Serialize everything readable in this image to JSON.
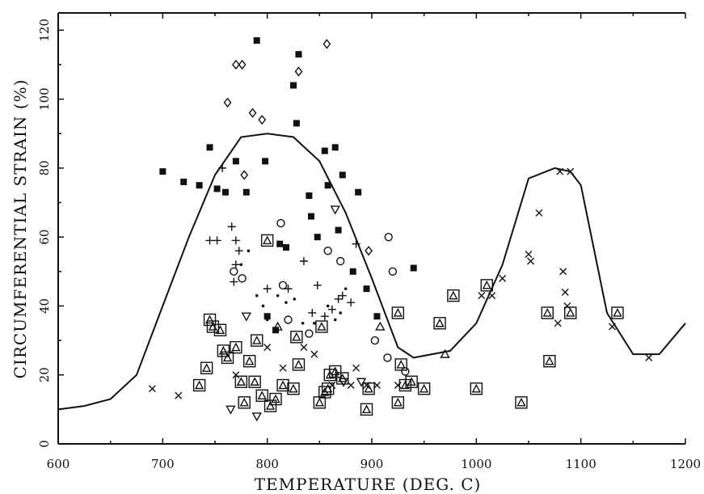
{
  "chart_data": {
    "type": "scatter",
    "xlabel": "TEMPERATURE (DEG. C)",
    "ylabel": "CIRCUMFERENTIAL STRAIN (%)",
    "xlim": [
      600,
      1200
    ],
    "ylim": [
      0,
      125
    ],
    "x_ticks": [
      600,
      700,
      800,
      900,
      1000,
      1100,
      1200
    ],
    "y_ticks": [
      0,
      20,
      40,
      60,
      80,
      100,
      120
    ],
    "grid": false,
    "legend": "none",
    "envelope": {
      "type": "line",
      "points": [
        [
          600,
          10
        ],
        [
          625,
          11
        ],
        [
          650,
          13
        ],
        [
          675,
          20
        ],
        [
          700,
          40
        ],
        [
          725,
          60
        ],
        [
          750,
          78
        ],
        [
          775,
          89
        ],
        [
          800,
          90
        ],
        [
          825,
          89
        ],
        [
          850,
          82
        ],
        [
          875,
          67
        ],
        [
          900,
          48
        ],
        [
          925,
          28
        ],
        [
          940,
          25
        ],
        [
          975,
          27
        ],
        [
          1000,
          35
        ],
        [
          1025,
          52
        ],
        [
          1050,
          77
        ],
        [
          1075,
          80
        ],
        [
          1090,
          79
        ],
        [
          1100,
          75
        ],
        [
          1125,
          38
        ],
        [
          1150,
          26
        ],
        [
          1175,
          26
        ],
        [
          1200,
          35
        ]
      ]
    },
    "series": [
      {
        "marker": "filled-square",
        "points": [
          [
            700,
            79
          ],
          [
            720,
            76
          ],
          [
            735,
            75
          ],
          [
            745,
            86
          ],
          [
            752,
            74
          ],
          [
            760,
            73
          ],
          [
            770,
            82
          ],
          [
            780,
            73
          ],
          [
            790,
            117
          ],
          [
            798,
            82
          ],
          [
            800,
            37
          ],
          [
            808,
            33
          ],
          [
            812,
            58
          ],
          [
            818,
            57
          ],
          [
            825,
            104
          ],
          [
            830,
            113
          ],
          [
            828,
            93
          ],
          [
            840,
            72
          ],
          [
            842,
            66
          ],
          [
            848,
            60
          ],
          [
            855,
            85
          ],
          [
            858,
            75
          ],
          [
            865,
            86
          ],
          [
            868,
            62
          ],
          [
            872,
            78
          ],
          [
            882,
            50
          ],
          [
            887,
            73
          ],
          [
            895,
            45
          ],
          [
            905,
            37
          ],
          [
            940,
            51
          ]
        ]
      },
      {
        "marker": "open-diamond",
        "points": [
          [
            762,
            99
          ],
          [
            770,
            110
          ],
          [
            776,
            110
          ],
          [
            778,
            78
          ],
          [
            786,
            96
          ],
          [
            795,
            94
          ],
          [
            830,
            108
          ],
          [
            857,
            116
          ],
          [
            897,
            56
          ]
        ]
      },
      {
        "marker": "plus",
        "points": [
          [
            745,
            59
          ],
          [
            752,
            59
          ],
          [
            757,
            80
          ],
          [
            766,
            63
          ],
          [
            770,
            59
          ],
          [
            773,
            56
          ],
          [
            770,
            52
          ],
          [
            768,
            47
          ],
          [
            800,
            45
          ],
          [
            820,
            45
          ],
          [
            835,
            53
          ],
          [
            843,
            38
          ],
          [
            848,
            46
          ],
          [
            855,
            37
          ],
          [
            862,
            39
          ],
          [
            868,
            42
          ],
          [
            872,
            43
          ],
          [
            880,
            41
          ],
          [
            885,
            58
          ]
        ]
      },
      {
        "marker": "open-circle",
        "points": [
          [
            768,
            50
          ],
          [
            776,
            48
          ],
          [
            813,
            64
          ],
          [
            815,
            46
          ],
          [
            820,
            36
          ],
          [
            840,
            32
          ],
          [
            858,
            56
          ],
          [
            870,
            53
          ],
          [
            903,
            30
          ],
          [
            915,
            25
          ],
          [
            916,
            60
          ],
          [
            920,
            50
          ],
          [
            932,
            21
          ]
        ]
      },
      {
        "marker": "dot",
        "points": [
          [
            775,
            52
          ],
          [
            782,
            56
          ],
          [
            790,
            43
          ],
          [
            796,
            40
          ],
          [
            800,
            36
          ],
          [
            810,
            43
          ],
          [
            818,
            41
          ],
          [
            826,
            42
          ],
          [
            834,
            35
          ],
          [
            845,
            35
          ],
          [
            858,
            40
          ],
          [
            865,
            36
          ],
          [
            870,
            38
          ],
          [
            875,
            45
          ]
        ]
      },
      {
        "marker": "boxed-triangle",
        "points": [
          [
            735,
            17
          ],
          [
            742,
            22
          ],
          [
            745,
            36
          ],
          [
            748,
            34
          ],
          [
            755,
            33
          ],
          [
            758,
            27
          ],
          [
            762,
            25
          ],
          [
            770,
            28
          ],
          [
            775,
            18
          ],
          [
            778,
            12
          ],
          [
            783,
            24
          ],
          [
            788,
            18
          ],
          [
            790,
            30
          ],
          [
            795,
            14
          ],
          [
            800,
            59
          ],
          [
            803,
            11
          ],
          [
            808,
            13
          ],
          [
            815,
            17
          ],
          [
            825,
            16
          ],
          [
            828,
            31
          ],
          [
            830,
            23
          ],
          [
            850,
            12
          ],
          [
            852,
            34
          ],
          [
            855,
            15
          ],
          [
            858,
            16
          ],
          [
            860,
            20
          ],
          [
            865,
            21
          ],
          [
            872,
            19
          ],
          [
            895,
            10
          ],
          [
            897,
            16
          ],
          [
            925,
            12
          ],
          [
            925,
            38
          ],
          [
            928,
            23
          ],
          [
            932,
            17
          ],
          [
            938,
            18
          ],
          [
            950,
            16
          ],
          [
            965,
            35
          ],
          [
            978,
            43
          ],
          [
            1000,
            16
          ],
          [
            1010,
            46
          ],
          [
            1043,
            12
          ],
          [
            1068,
            38
          ],
          [
            1070,
            24
          ],
          [
            1090,
            38
          ],
          [
            1135,
            38
          ]
        ]
      },
      {
        "marker": "open-triangle-down",
        "points": [
          [
            765,
            10
          ],
          [
            780,
            37
          ],
          [
            790,
            8
          ],
          [
            865,
            68
          ],
          [
            873,
            18
          ],
          [
            890,
            18
          ]
        ]
      },
      {
        "marker": "open-triangle-up",
        "points": [
          [
            810,
            34
          ],
          [
            908,
            34
          ],
          [
            970,
            26
          ]
        ]
      },
      {
        "marker": "cross",
        "points": [
          [
            690,
            16
          ],
          [
            715,
            14
          ],
          [
            770,
            20
          ],
          [
            800,
            28
          ],
          [
            815,
            22
          ],
          [
            835,
            28
          ],
          [
            845,
            26
          ],
          [
            862,
            17
          ],
          [
            880,
            17
          ],
          [
            885,
            22
          ],
          [
            895,
            17
          ],
          [
            905,
            17
          ],
          [
            925,
            17
          ],
          [
            1005,
            43
          ],
          [
            1015,
            43
          ],
          [
            1025,
            48
          ],
          [
            1050,
            55
          ],
          [
            1052,
            53
          ],
          [
            1060,
            67
          ],
          [
            1078,
            35
          ],
          [
            1080,
            79
          ],
          [
            1083,
            50
          ],
          [
            1085,
            44
          ],
          [
            1087,
            40
          ],
          [
            1090,
            79
          ],
          [
            1130,
            34
          ],
          [
            1165,
            25
          ]
        ]
      }
    ]
  }
}
